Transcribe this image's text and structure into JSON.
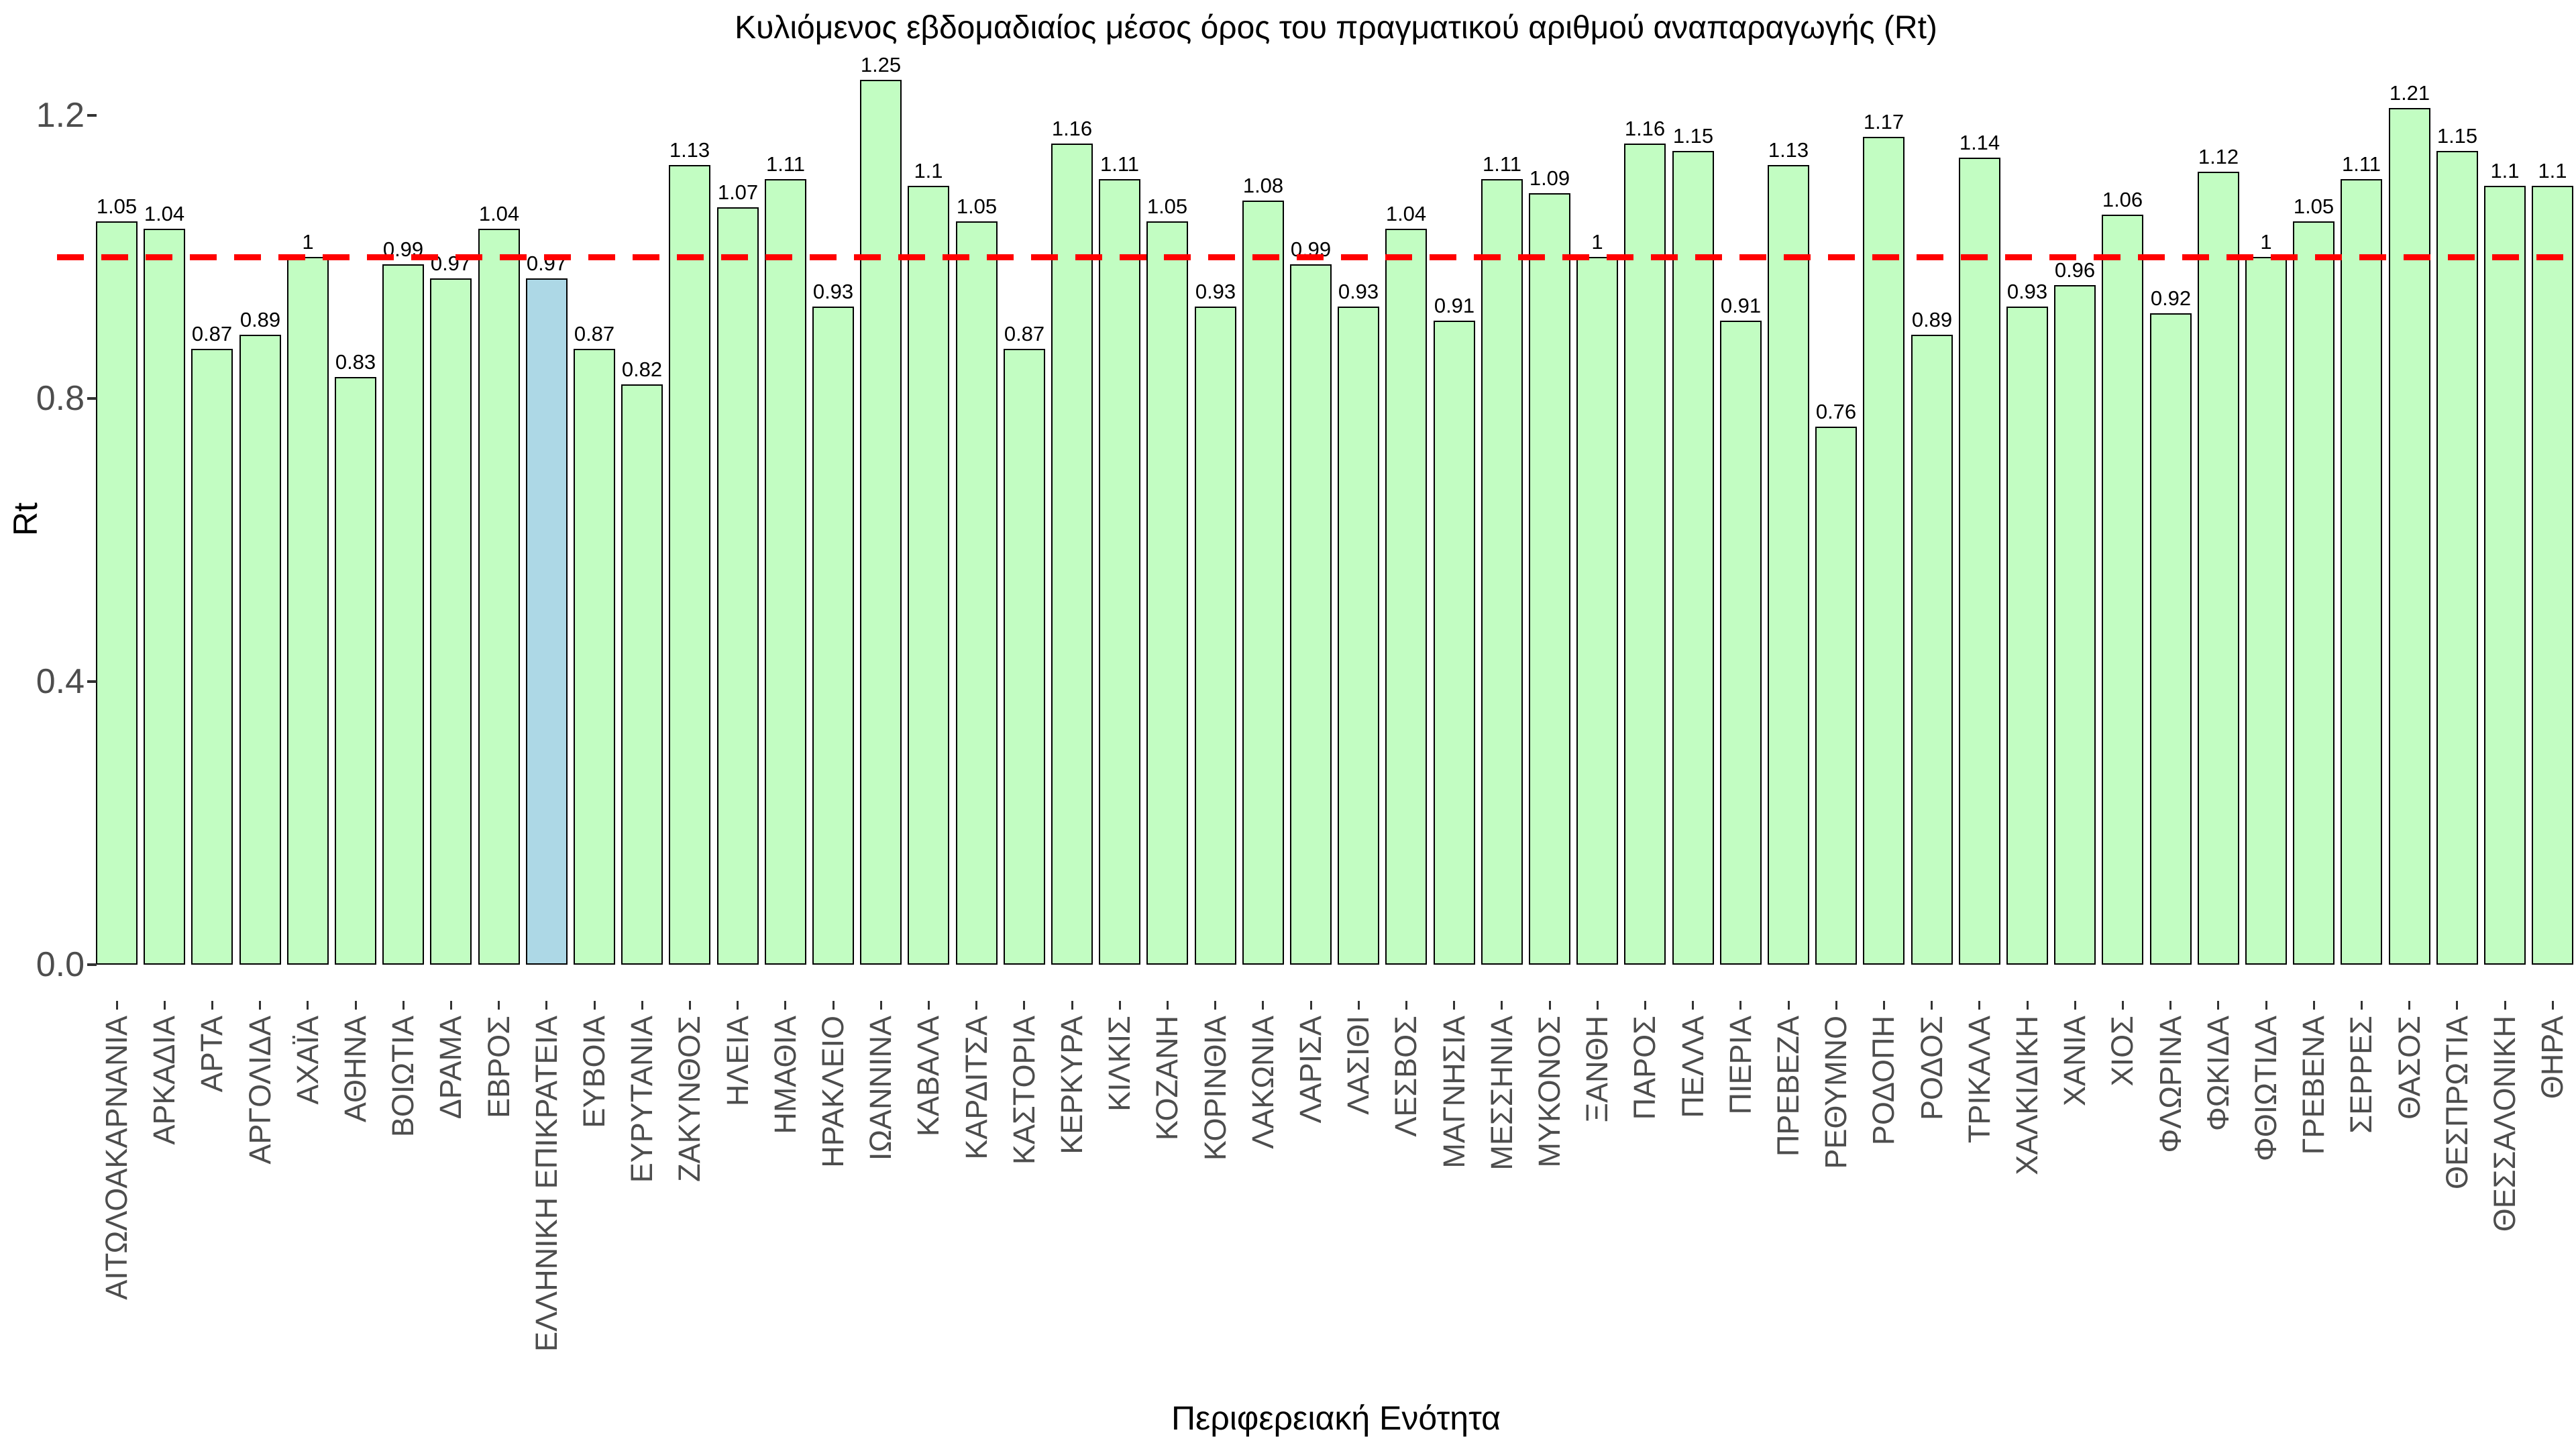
{
  "header": {
    "title": "Κυλιόμενος εβδομαδιαίος μέσος όρος του πραγματικού αριθμού αναπαραγωγής (Rt)"
  },
  "axes": {
    "xlabel": "Περιφερειακή Ενότητα",
    "ylabel": "Rt",
    "ytick_labels": [
      "0.0",
      "0.4",
      "0.8",
      "1.2"
    ]
  },
  "colors": {
    "bar_fill": "#C2FDC2",
    "highlight_fill": "#ADD8E6",
    "bar_border": "#000000",
    "reference_line": "#ff0000",
    "axis_text": "#4d4d4d",
    "value_text": "#000000"
  },
  "chart_data": {
    "type": "bar",
    "title": "Κυλιόμενος εβδομαδιαίος μέσος όρος του πραγματικού αριθμού αναπαραγωγής (Rt)",
    "xlabel": "Περιφερειακή Ενότητα",
    "ylabel": "Rt",
    "ylim": [
      0,
      1.3
    ],
    "yticks": [
      0,
      0.4,
      0.8,
      1.2
    ],
    "grid": false,
    "reference_line": 1,
    "highlight_category": "ΕΛΛΗΝΙΚΗ ΕΠΙΚΡΑΤΕΙΑ",
    "categories": [
      "ΑΙΤΩΛΟΑΚΑΡΝΑΝΙΑ",
      "ΑΡΚΑΔΙΑ",
      "ΑΡΤΑ",
      "ΑΡΓΟΛΙΔΑ",
      "ΑΧΑΪΑ",
      "ΑΘΗΝΑ",
      "ΒΟΙΩΤΙΑ",
      "ΔΡΑΜΑ",
      "ΕΒΡΟΣ",
      "ΕΛΛΗΝΙΚΗ ΕΠΙΚΡΑΤΕΙΑ",
      "ΕΥΒΟΙΑ",
      "ΕΥΡΥΤΑΝΙΑ",
      "ΖΑΚΥΝΘΟΣ",
      "ΗΛΕΙΑ",
      "ΗΜΑΘΙΑ",
      "ΗΡΑΚΛΕΙΟ",
      "ΙΩΑΝΝΙΝΑ",
      "ΚΑΒΑΛΑ",
      "ΚΑΡΔΙΤΣΑ",
      "ΚΑΣΤΟΡΙΑ",
      "ΚΕΡΚΥΡΑ",
      "ΚΙΛΚΙΣ",
      "ΚΟΖΑΝΗ",
      "ΚΟΡΙΝΘΙΑ",
      "ΛΑΚΩΝΙΑ",
      "ΛΑΡΙΣΑ",
      "ΛΑΣΙΘΙ",
      "ΛΕΣΒΟΣ",
      "ΜΑΓΝΗΣΙΑ",
      "ΜΕΣΣΗΝΙΑ",
      "ΜΥΚΟΝΟΣ",
      "ΞΑΝΘΗ",
      "ΠΑΡΟΣ",
      "ΠΕΛΛΑ",
      "ΠΙΕΡΙΑ",
      "ΠΡΕΒΕΖΑ",
      "ΡΕΘΥΜΝΟ",
      "ΡΟΔΟΠΗ",
      "ΡΟΔΟΣ",
      "ΤΡΙΚΑΛΑ",
      "ΧΑΛΚΙΔΙΚΗ",
      "ΧΑΝΙΑ",
      "ΧΙΟΣ",
      "ΦΛΩΡΙΝΑ",
      "ΦΩΚΙΔΑ",
      "ΦΘΙΩΤΙΔΑ",
      "ΓΡΕΒΕΝΑ",
      "ΣΕΡΡΕΣ",
      "ΘΑΣΟΣ",
      "ΘΕΣΠΡΩΤΙΑ",
      "ΘΕΣΣΑΛΟΝΙΚΗ",
      "ΘΗΡΑ"
    ],
    "values": [
      1.05,
      1.04,
      0.87,
      0.89,
      1,
      0.83,
      0.99,
      0.97,
      1.04,
      0.97,
      0.87,
      0.82,
      1.13,
      1.07,
      1.11,
      0.93,
      1.25,
      1.1,
      1.05,
      0.87,
      1.16,
      1.11,
      1.05,
      0.93,
      1.08,
      0.99,
      0.93,
      1.04,
      0.91,
      1.11,
      1.09,
      1,
      1.16,
      1.15,
      0.91,
      1.13,
      0.76,
      1.17,
      0.89,
      1.14,
      0.93,
      0.96,
      1.06,
      0.92,
      1.12,
      1,
      1.05,
      1.11,
      1.21,
      1.15,
      1.1,
      1.1
    ],
    "value_labels": [
      "1.05",
      "1.04",
      "0.87",
      "0.89",
      "1",
      "0.83",
      "0.99",
      "0.97",
      "1.04",
      "0.97",
      "0.87",
      "0.82",
      "1.13",
      "1.07",
      "1.11",
      "0.93",
      "1.25",
      "1.1",
      "1.05",
      "0.87",
      "1.16",
      "1.11",
      "1.05",
      "0.93",
      "1.08",
      "0.99",
      "0.93",
      "1.04",
      "0.91",
      "1.11",
      "1.09",
      "1",
      "1.16",
      "1.15",
      "0.91",
      "1.13",
      "0.76",
      "1.17",
      "0.89",
      "1.14",
      "0.93",
      "0.96",
      "1.06",
      "0.92",
      "1.12",
      "1",
      "1.05",
      "1.11",
      "1.21",
      "1.15",
      "1.1",
      "1.1"
    ]
  }
}
